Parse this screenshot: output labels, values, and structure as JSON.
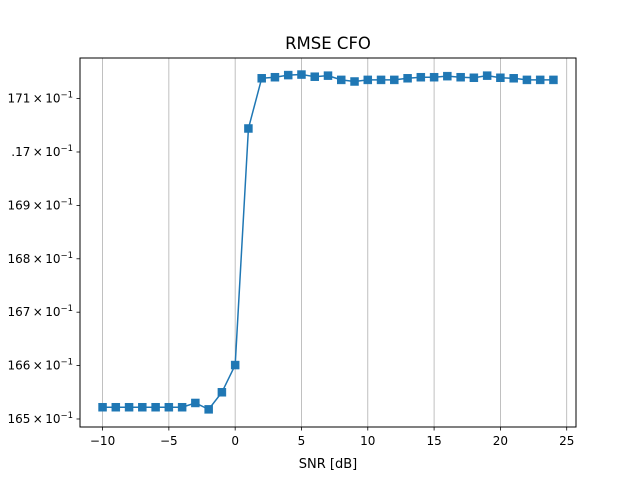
{
  "chart_data": {
    "type": "line",
    "title": "RMSE CFO",
    "xlabel": "SNR [dB]",
    "ylabel": "",
    "x_ticks": [
      -10,
      -5,
      0,
      5,
      10,
      15,
      20,
      25
    ],
    "x_tick_labels": [
      "−10",
      "−5",
      "0",
      "5",
      "10",
      "15",
      "20",
      "25"
    ],
    "xlim": [
      -11.7,
      25.7
    ],
    "y_ticks": [
      0.165,
      0.166,
      0.167,
      0.168,
      0.169,
      0.17,
      0.171
    ],
    "y_tick_labels": [
      {
        "mantissa": "165",
        "base": "10",
        "exp": "−1"
      },
      {
        "mantissa": "166",
        "base": "10",
        "exp": "−1"
      },
      {
        "mantissa": "167",
        "base": "10",
        "exp": "−1"
      },
      {
        "mantissa": "168",
        "base": "10",
        "exp": "−1"
      },
      {
        "mantissa": "169",
        "base": "10",
        "exp": "−1"
      },
      {
        "mantissa": ".17",
        "base": "10",
        "exp": "−1"
      },
      {
        "mantissa": "171",
        "base": "10",
        "exp": "−1"
      }
    ],
    "ylim": [
      0.16485,
      0.17176
    ],
    "grid": {
      "x": true,
      "y": false
    },
    "series": [
      {
        "color": "#1f77b4",
        "marker": "square",
        "x": [
          -10,
          -9,
          -8,
          -7,
          -6,
          -5,
          -4,
          -3,
          -2,
          -1,
          0,
          1,
          2,
          3,
          4,
          5,
          6,
          7,
          8,
          9,
          10,
          11,
          12,
          13,
          14,
          15,
          16,
          17,
          18,
          19,
          20,
          21,
          22,
          23,
          24
        ],
        "y": [
          0.16522,
          0.16522,
          0.16522,
          0.16522,
          0.16522,
          0.16522,
          0.16522,
          0.1653,
          0.16518,
          0.1655,
          0.16601,
          0.17044,
          0.17138,
          0.1714,
          0.17144,
          0.17145,
          0.17141,
          0.17143,
          0.17135,
          0.17132,
          0.17135,
          0.17135,
          0.17135,
          0.17138,
          0.1714,
          0.1714,
          0.17142,
          0.1714,
          0.17139,
          0.17143,
          0.17139,
          0.17138,
          0.17135,
          0.17135,
          0.17135
        ]
      }
    ]
  }
}
